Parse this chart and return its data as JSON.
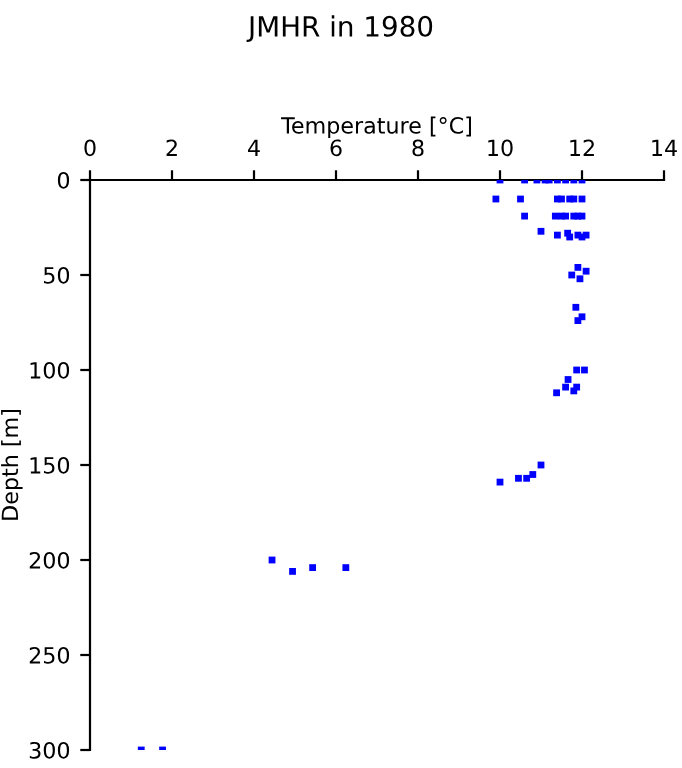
{
  "chart_data": {
    "type": "scatter",
    "title": "JMHR in 1980",
    "xlabel": "Temperature [°C]",
    "ylabel": "Depth [m]",
    "xlim": [
      0,
      14
    ],
    "xticks": [
      0,
      2,
      4,
      6,
      8,
      10,
      12,
      14
    ],
    "ylim": [
      300,
      0
    ],
    "yticks": [
      0,
      50,
      100,
      150,
      200,
      250,
      300
    ],
    "grid": false,
    "marker": "square",
    "series": [
      {
        "color": "#0000ff",
        "x": [
          10.0,
          10.6,
          10.9,
          11.1,
          11.2,
          11.4,
          11.6,
          11.8,
          12.0,
          9.9,
          10.5,
          11.4,
          11.5,
          11.7,
          11.8,
          12.0,
          10.6,
          11.35,
          11.5,
          11.6,
          11.8,
          11.9,
          12.0,
          11.0,
          11.4,
          11.65,
          11.7,
          11.9,
          12.0,
          12.1,
          11.9,
          11.75,
          12.1,
          11.95,
          11.85,
          12.0,
          11.9,
          11.87,
          12.06,
          11.66,
          11.38,
          11.6,
          11.8,
          11.87,
          11.0,
          10.8,
          10.65,
          10.45,
          10.0,
          4.44,
          4.94,
          5.43,
          6.24,
          1.25,
          1.77
        ],
        "values": [
          0,
          0,
          0,
          0,
          0,
          0,
          0,
          0,
          0,
          10,
          10,
          10,
          10,
          10,
          10,
          10,
          19,
          19,
          19,
          19,
          19,
          19,
          19,
          27,
          29,
          28,
          30,
          29,
          30,
          29,
          46,
          50,
          48,
          52,
          67,
          72,
          74,
          100,
          100,
          105,
          112,
          109,
          111,
          109,
          150,
          155,
          157,
          157,
          159,
          200,
          206,
          204,
          204,
          300,
          300
        ]
      }
    ]
  }
}
